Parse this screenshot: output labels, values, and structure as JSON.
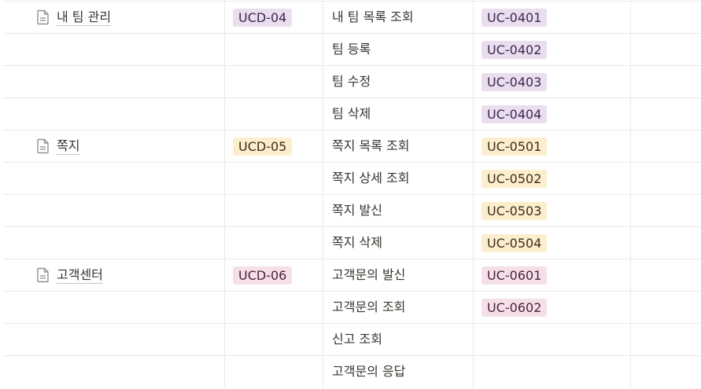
{
  "rows": [
    {
      "page": "내 팀 관리",
      "ucd": "UCD-04",
      "usecase": "내 팀 목록 조회",
      "uc": "UC-0401",
      "color": "purple"
    },
    {
      "usecase": "팀 등록",
      "uc": "UC-0402",
      "color": "purple"
    },
    {
      "usecase": "팀 수정",
      "uc": "UC-0403",
      "color": "purple"
    },
    {
      "usecase": "팀 삭제",
      "uc": "UC-0404",
      "color": "purple"
    },
    {
      "page": "쪽지",
      "ucd": "UCD-05",
      "usecase": "쪽지 목록 조회",
      "uc": "UC-0501",
      "color": "yellow"
    },
    {
      "usecase": "쪽지 상세 조회",
      "uc": "UC-0502",
      "color": "yellow"
    },
    {
      "usecase": "쪽지 발신",
      "uc": "UC-0503",
      "color": "yellow"
    },
    {
      "usecase": "쪽지 삭제",
      "uc": "UC-0504",
      "color": "yellow"
    },
    {
      "page": "고객센터",
      "ucd": "UCD-06",
      "usecase": "고객문의 발신",
      "uc": "UC-0601",
      "color": "pink"
    },
    {
      "usecase": "고객문의 조회",
      "uc": "UC-0602",
      "color": "pink"
    },
    {
      "usecase": "신고 조회"
    },
    {
      "usecase": "고객문의 응답"
    }
  ],
  "tag_colors": {
    "purple": "#e8deee",
    "yellow": "#fbeecc",
    "pink": "#f5e0e9"
  },
  "icon": "page-icon"
}
